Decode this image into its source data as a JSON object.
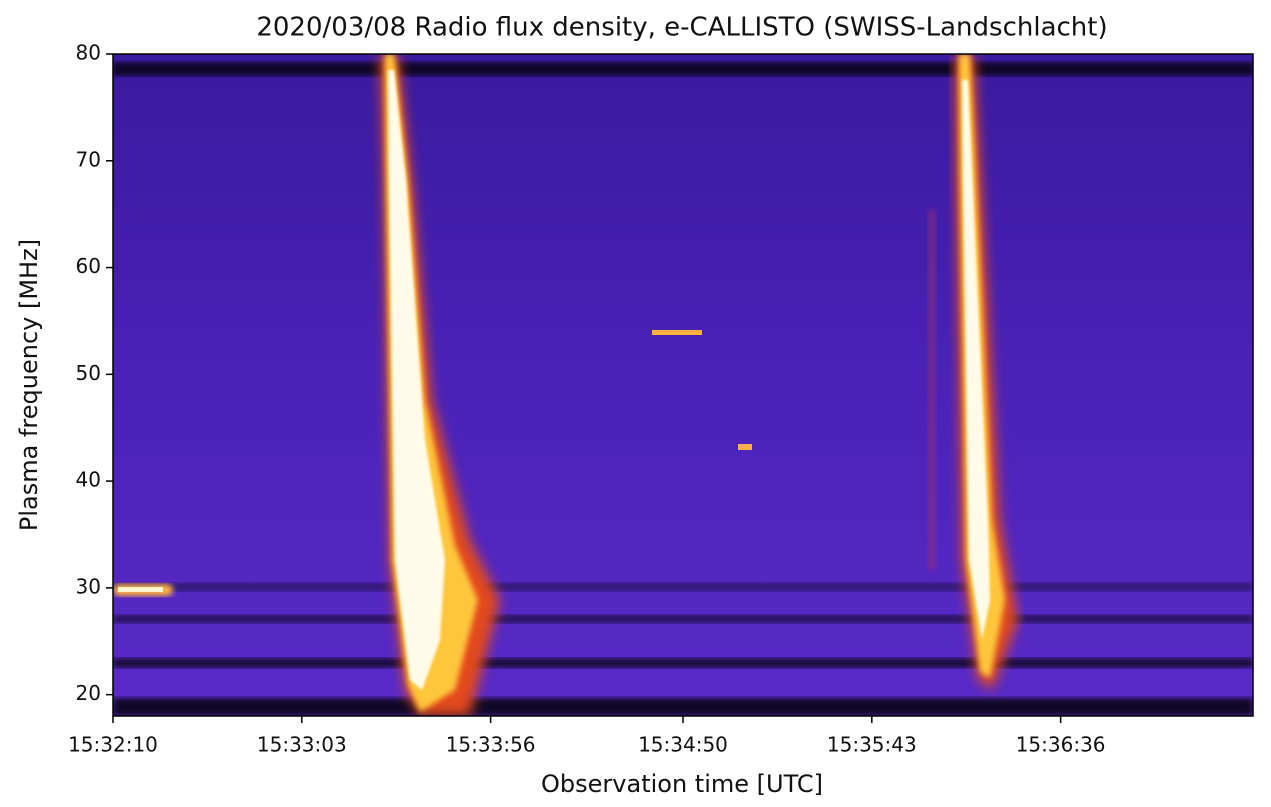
{
  "chart_data": {
    "type": "spectrogram",
    "title": "2020/03/08  Radio flux density, e-CALLISTO (SWISS-Landschlacht)",
    "x_label": "Observation time [UTC]",
    "y_label": "Plasma frequency [MHz]",
    "xlim": [
      "15:32:10",
      "15:37:30"
    ],
    "xticks": [
      "15:32:10",
      "15:33:03",
      "15:33:56",
      "15:34:50",
      "15:35:43",
      "15:36:36"
    ],
    "ylim": [
      18,
      80
    ],
    "yticks": [
      20,
      30,
      40,
      50,
      60,
      70,
      80
    ]
  }
}
